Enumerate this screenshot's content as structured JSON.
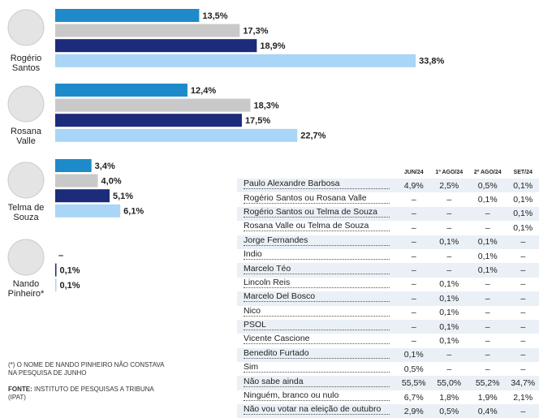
{
  "chart_data": {
    "type": "bar",
    "categories": [
      "Rogério Santos",
      "Rosana Valle",
      "Telma de Souza",
      "Nando Pinheiro*"
    ],
    "series": [
      {
        "color": "#1d8bc9",
        "values": [
          13.5,
          12.4,
          3.4,
          null
        ],
        "value_labels": [
          "13,5%",
          "12,4%",
          "3,4%",
          "–"
        ]
      },
      {
        "color": "#c9c9c9",
        "values": [
          17.3,
          18.3,
          4.0,
          null
        ],
        "value_labels": [
          "17,3%",
          "18,3%",
          "4,0%",
          null
        ]
      },
      {
        "color": "#1c2b7a",
        "values": [
          18.9,
          17.5,
          5.1,
          0.1
        ],
        "value_labels": [
          "18,9%",
          "17,5%",
          "5,1%",
          "0,1%"
        ]
      },
      {
        "color": "#a9d5f6",
        "values": [
          33.8,
          22.7,
          6.1,
          0.1
        ],
        "value_labels": [
          "33,8%",
          "22,7%",
          "6,1%",
          "0,1%"
        ]
      }
    ]
  },
  "footnote": "(*) O NOME DE NANDO PINHEIRO NÃO CONSTAVA NA PESQUISA DE JUNHO",
  "source_label": "FONTE:",
  "source": "INSTITUTO DE PESQUISAS A TRIBUNA (IPAT)",
  "table": {
    "header": [
      "JUN/24",
      "1º AGO/24",
      "2º AGO/24",
      "SET/24"
    ],
    "rows": [
      [
        "Paulo Alexandre Barbosa",
        "4,9%",
        "2,5%",
        "0,5%",
        "0,1%"
      ],
      [
        "Rogério Santos ou Rosana Valle",
        "–",
        "–",
        "0,1%",
        "0,1%"
      ],
      [
        "Rogério Santos ou Telma de Souza",
        "–",
        "–",
        "–",
        "0,1%"
      ],
      [
        "Rosana Valle ou Telma de Souza",
        "–",
        "–",
        "–",
        "0,1%"
      ],
      [
        "Jorge Fernandes",
        "–",
        "0,1%",
        "0,1%",
        "–"
      ],
      [
        "Índio",
        "–",
        "–",
        "0,1%",
        "–"
      ],
      [
        "Marcelo Téo",
        "–",
        "–",
        "0,1%",
        "–"
      ],
      [
        "Lincoln Reis",
        "–",
        "0,1%",
        "–",
        "–"
      ],
      [
        "Marcelo Del Bosco",
        "–",
        "0,1%",
        "–",
        "–"
      ],
      [
        "Nico",
        "–",
        "0,1%",
        "–",
        "–"
      ],
      [
        "PSOL",
        "–",
        "0,1%",
        "–",
        "–"
      ],
      [
        "Vicente Cascione",
        "–",
        "0,1%",
        "–",
        "–"
      ],
      [
        "Benedito Furtado",
        "0,1%",
        "–",
        "–",
        "–"
      ],
      [
        "Sim",
        "0,5%",
        "–",
        "–",
        "–"
      ],
      [
        "Não sabe ainda",
        "55,5%",
        "55,0%",
        "55,2%",
        "34,7%"
      ],
      [
        "Ninguém, branco ou nulo",
        "6,7%",
        "1,8%",
        "1,9%",
        "2,1%"
      ],
      [
        "Não vou votar na eleição de outubro",
        "2,9%",
        "0,5%",
        "0,4%",
        "–"
      ]
    ]
  }
}
